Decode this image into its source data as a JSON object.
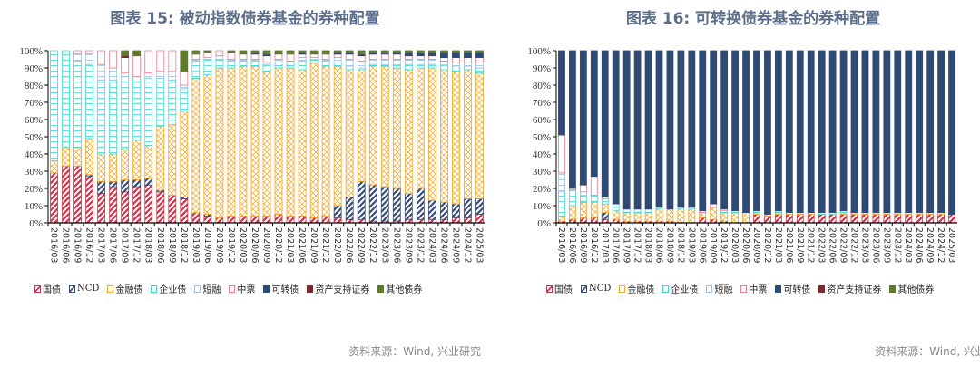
{
  "source_note": "资料来源：Wind, 兴业研究",
  "series_styles": [
    {
      "name": "国债",
      "color": "#c8364a",
      "pattern": "diag"
    },
    {
      "name": "NCD",
      "color": "#3b4e72",
      "pattern": "diag"
    },
    {
      "name": "金融债",
      "color": "#f5a623",
      "pattern": "cross"
    },
    {
      "name": "企业债",
      "color": "#40d8cc",
      "pattern": "grid"
    },
    {
      "name": "短融",
      "color": "#9fc0e6",
      "pattern": "grid"
    },
    {
      "name": "中票",
      "color": "#f07890",
      "pattern": "outline"
    },
    {
      "name": "可转债",
      "color": "#2e4a75",
      "pattern": "solid"
    },
    {
      "name": "资产支持证券",
      "color": "#7b2a2a",
      "pattern": "solid"
    },
    {
      "name": "其他债券",
      "color": "#5f7a30",
      "pattern": "solid"
    }
  ],
  "chart_data": [
    {
      "type": "bar",
      "stacked": true,
      "title": "图表 15:  被动指数债券基金的券种配置",
      "ylim": [
        0,
        100
      ],
      "yticks": [
        "0%",
        "10%",
        "20%",
        "30%",
        "40%",
        "50%",
        "60%",
        "70%",
        "80%",
        "90%",
        "100%"
      ],
      "legend_position": "bottom",
      "categories": [
        "2016/03",
        "2016/06",
        "2016/09",
        "2016/12",
        "2017/03",
        "2017/06",
        "2017/09",
        "2017/12",
        "2018/03",
        "2018/06",
        "2018/09",
        "2018/12",
        "2019/03",
        "2019/06",
        "2019/09",
        "2019/12",
        "2020/03",
        "2020/06",
        "2020/09",
        "2020/12",
        "2021/03",
        "2021/06",
        "2021/09",
        "2021/12",
        "2022/03",
        "2022/06",
        "2022/09",
        "2022/12",
        "2023/03",
        "2023/06",
        "2023/09",
        "2023/12",
        "2024/03",
        "2024/06",
        "2024/09",
        "2024/12",
        "2025/03"
      ],
      "series": [
        {
          "name": "国债",
          "values": [
            29,
            33,
            33,
            27,
            17,
            21,
            18,
            21,
            22,
            18,
            16,
            14,
            6,
            4,
            3,
            4,
            4,
            4,
            4,
            5,
            4,
            4,
            3,
            4,
            3,
            2,
            2,
            1,
            1,
            1,
            2,
            2,
            2,
            2,
            3,
            3,
            5
          ]
        },
        {
          "name": "NCD",
          "values": [
            0,
            0,
            0,
            1,
            7,
            3,
            7,
            4,
            4,
            1,
            0,
            1,
            0,
            1,
            0,
            0,
            0,
            0,
            0,
            0,
            0,
            0,
            0,
            0,
            7,
            13,
            22,
            21,
            20,
            19,
            15,
            18,
            11,
            10,
            8,
            11,
            9
          ]
        },
        {
          "name": "金融债",
          "values": [
            7,
            11,
            11,
            21,
            16,
            16,
            18,
            23,
            19,
            37,
            41,
            50,
            78,
            81,
            87,
            86,
            87,
            87,
            84,
            85,
            86,
            85,
            90,
            87,
            81,
            74,
            65,
            69,
            70,
            70,
            72,
            70,
            77,
            77,
            77,
            75,
            73
          ]
        },
        {
          "name": "企业债",
          "values": [
            64,
            56,
            50,
            43,
            43,
            43,
            42,
            37,
            39,
            28,
            26,
            13,
            10,
            9,
            5,
            4,
            3,
            3,
            4,
            3,
            3,
            5,
            2,
            3,
            2,
            2,
            1,
            1,
            1,
            2,
            3,
            2,
            2,
            3,
            3,
            2,
            3
          ]
        },
        {
          "name": "短融",
          "values": [
            0,
            0,
            4,
            6,
            9,
            7,
            2,
            0,
            3,
            4,
            5,
            2,
            1,
            1,
            2,
            1,
            1,
            1,
            1,
            2,
            1,
            2,
            1,
            1,
            3,
            4,
            4,
            3,
            3,
            3,
            3,
            3,
            3,
            2,
            2,
            2,
            3
          ]
        },
        {
          "name": "中票",
          "values": [
            0,
            0,
            2,
            2,
            8,
            10,
            9,
            12,
            13,
            12,
            12,
            8,
            3,
            3,
            3,
            4,
            3,
            3,
            4,
            3,
            4,
            2,
            2,
            3,
            2,
            3,
            3,
            3,
            3,
            3,
            2,
            2,
            2,
            2,
            3,
            3,
            3
          ]
        },
        {
          "name": "可转债",
          "values": [
            0,
            0,
            0,
            0,
            0,
            0,
            0,
            0,
            0,
            0,
            0,
            0,
            0,
            0,
            0,
            0,
            0,
            1,
            1,
            0,
            0,
            1,
            0,
            0,
            1,
            1,
            1,
            1,
            1,
            1,
            2,
            2,
            2,
            3,
            3,
            3,
            3
          ]
        },
        {
          "name": "资产支持证券",
          "values": [
            0,
            0,
            0,
            0,
            0,
            0,
            1,
            0,
            0,
            0,
            0,
            0,
            0,
            0,
            0,
            0,
            0,
            0,
            0,
            0,
            0,
            0,
            0,
            0,
            0,
            0,
            0,
            0,
            0,
            0,
            0,
            0,
            0,
            0,
            0,
            0,
            0
          ]
        },
        {
          "name": "其他债券",
          "values": [
            0,
            0,
            0,
            0,
            0,
            0,
            3,
            3,
            0,
            0,
            0,
            12,
            2,
            1,
            0,
            1,
            2,
            1,
            2,
            2,
            2,
            1,
            2,
            2,
            1,
            1,
            2,
            1,
            1,
            1,
            1,
            1,
            1,
            1,
            1,
            1,
            1
          ]
        }
      ]
    },
    {
      "type": "bar",
      "stacked": true,
      "title": "图表 16:  可转换债券基金的券种配置",
      "ylim": [
        0,
        100
      ],
      "yticks": [
        "0%",
        "10%",
        "20%",
        "30%",
        "40%",
        "50%",
        "60%",
        "70%",
        "80%",
        "90%",
        "100%"
      ],
      "legend_position": "bottom",
      "categories": [
        "2016/03",
        "2016/06",
        "2016/09",
        "2016/12",
        "2017/03",
        "2017/06",
        "2017/09",
        "2017/12",
        "2018/03",
        "2018/06",
        "2018/09",
        "2018/12",
        "2019/03",
        "2019/06",
        "2019/09",
        "2019/12",
        "2020/03",
        "2020/06",
        "2020/09",
        "2020/12",
        "2021/03",
        "2021/06",
        "2021/09",
        "2021/12",
        "2022/03",
        "2022/06",
        "2022/09",
        "2022/12",
        "2023/03",
        "2023/06",
        "2023/09",
        "2023/12",
        "2024/03",
        "2024/06",
        "2024/09",
        "2024/12",
        "2025/03"
      ],
      "series": [
        {
          "name": "国债",
          "values": [
            1,
            2,
            3,
            3,
            2,
            2,
            1,
            1,
            1,
            1,
            1,
            0,
            0,
            3,
            2,
            0,
            0,
            0,
            5,
            4,
            5,
            5,
            5,
            5,
            5,
            5,
            5,
            5,
            5,
            5,
            5,
            5,
            5,
            5,
            5,
            5,
            5
          ]
        },
        {
          "name": "NCD",
          "values": [
            0,
            0,
            0,
            0,
            4,
            0,
            0,
            0,
            0,
            0,
            0,
            0,
            0,
            0,
            0,
            1,
            0,
            0,
            0,
            0,
            0,
            0,
            0,
            0,
            0,
            0,
            0,
            0,
            0,
            0,
            0,
            0,
            0,
            0,
            0,
            0,
            0
          ]
        },
        {
          "name": "金融债",
          "values": [
            3,
            8,
            9,
            9,
            5,
            5,
            5,
            5,
            5,
            7,
            7,
            8,
            8,
            3,
            7,
            5,
            6,
            6,
            1,
            1,
            1,
            1,
            1,
            1,
            0,
            0,
            1,
            1,
            1,
            1,
            1,
            1,
            1,
            1,
            1,
            1,
            0
          ]
        },
        {
          "name": "企业债",
          "values": [
            14,
            9,
            4,
            4,
            3,
            4,
            2,
            2,
            2,
            1,
            0,
            1,
            1,
            0,
            0,
            1,
            1,
            0,
            1,
            0,
            1,
            0,
            0,
            0,
            1,
            1,
            1,
            0,
            0,
            0,
            0,
            0,
            0,
            0,
            0,
            0,
            0
          ]
        },
        {
          "name": "短融",
          "values": [
            11,
            0,
            2,
            0,
            0,
            0,
            0,
            0,
            0,
            0,
            0,
            0,
            0,
            0,
            0,
            0,
            0,
            0,
            0,
            0,
            0,
            0,
            0,
            0,
            0,
            0,
            0,
            0,
            0,
            0,
            0,
            0,
            0,
            0,
            0,
            0,
            0
          ]
        },
        {
          "name": "中票",
          "values": [
            22,
            1,
            4,
            11,
            1,
            0,
            0,
            0,
            0,
            0,
            0,
            0,
            0,
            1,
            2,
            1,
            0,
            0,
            0,
            0,
            0,
            0,
            0,
            0,
            0,
            0,
            0,
            0,
            0,
            0,
            0,
            0,
            0,
            0,
            0,
            0,
            0
          ]
        },
        {
          "name": "可转债",
          "values": [
            49,
            80,
            78,
            73,
            85,
            89,
            92,
            92,
            92,
            91,
            92,
            91,
            91,
            93,
            89,
            92,
            93,
            94,
            93,
            95,
            93,
            94,
            94,
            94,
            94,
            94,
            93,
            94,
            94,
            94,
            94,
            94,
            94,
            94,
            94,
            94,
            95
          ]
        },
        {
          "name": "资产支持证券",
          "values": [
            0,
            0,
            0,
            0,
            0,
            0,
            0,
            0,
            0,
            0,
            0,
            0,
            0,
            0,
            0,
            0,
            0,
            0,
            0,
            0,
            0,
            0,
            0,
            0,
            0,
            0,
            0,
            0,
            0,
            0,
            0,
            0,
            0,
            0,
            0,
            0,
            0
          ]
        },
        {
          "name": "其他债券",
          "values": [
            0,
            0,
            0,
            0,
            0,
            0,
            0,
            0,
            0,
            0,
            0,
            0,
            0,
            0,
            0,
            0,
            0,
            0,
            0,
            0,
            0,
            0,
            0,
            0,
            0,
            0,
            0,
            0,
            0,
            0,
            0,
            0,
            0,
            0,
            0,
            0,
            0
          ]
        }
      ]
    }
  ]
}
